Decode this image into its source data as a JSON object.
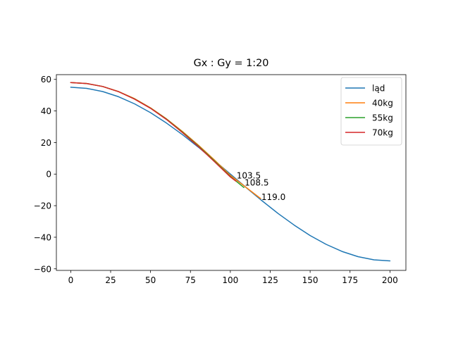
{
  "chart_data": {
    "type": "line",
    "title": "Gx : Gy = 1:20",
    "xlabel": "",
    "ylabel": "",
    "xlim": [
      -9,
      210
    ],
    "ylim": [
      -61,
      63
    ],
    "xticks": [
      0,
      25,
      50,
      75,
      100,
      125,
      150,
      175,
      200
    ],
    "yticks": [
      -60,
      -40,
      -20,
      0,
      20,
      40,
      60
    ],
    "tick_labels_x": [
      "0",
      "25",
      "50",
      "75",
      "100",
      "125",
      "150",
      "175",
      "200"
    ],
    "tick_labels_y": [
      "−60",
      "−40",
      "−20",
      "0",
      "20",
      "40",
      "60"
    ],
    "grid": false,
    "legend_position": "top-right",
    "series": [
      {
        "name": "ląd",
        "color": "#1f77b4",
        "x": [
          0,
          10,
          20,
          30,
          40,
          50,
          60,
          70,
          80,
          90,
          100,
          110,
          120,
          130,
          140,
          150,
          160,
          170,
          180,
          190,
          200
        ],
        "y": [
          55.0,
          54.3,
          52.3,
          49.0,
          44.5,
          38.9,
          32.3,
          25.0,
          17.0,
          8.6,
          0.0,
          -8.6,
          -17.0,
          -25.0,
          -32.3,
          -38.9,
          -44.5,
          -49.0,
          -52.3,
          -54.3,
          -55.0
        ]
      },
      {
        "name": "40kg",
        "color": "#ff7f0e",
        "x": [
          0,
          10,
          20,
          30,
          40,
          50,
          60,
          70,
          80,
          90,
          100,
          110,
          119
        ],
        "y": [
          58.0,
          57.4,
          55.5,
          52.3,
          47.8,
          42.0,
          35.0,
          27.0,
          18.3,
          9.0,
          -0.8,
          -8.5,
          -15.5
        ]
      },
      {
        "name": "55kg",
        "color": "#2ca02c",
        "x": [
          0,
          10,
          20,
          30,
          40,
          50,
          60,
          70,
          80,
          90,
          100,
          108.5
        ],
        "y": [
          58.0,
          57.4,
          55.5,
          52.2,
          47.6,
          41.8,
          34.8,
          26.6,
          17.8,
          8.4,
          -1.5,
          -8.5
        ]
      },
      {
        "name": "70kg",
        "color": "#d62728",
        "x": [
          0,
          10,
          20,
          30,
          40,
          50,
          60,
          70,
          80,
          90,
          100,
          103.5
        ],
        "y": [
          58.0,
          57.4,
          55.5,
          52.2,
          47.5,
          41.7,
          34.6,
          26.3,
          17.4,
          7.9,
          -1.8,
          -4.5
        ]
      }
    ],
    "annotations": [
      {
        "text": "103.5",
        "x": 103.5,
        "y": -1.0
      },
      {
        "text": "108.5",
        "x": 108.5,
        "y": -5.5
      },
      {
        "text": "119.0",
        "x": 119.0,
        "y": -14.5
      }
    ]
  }
}
